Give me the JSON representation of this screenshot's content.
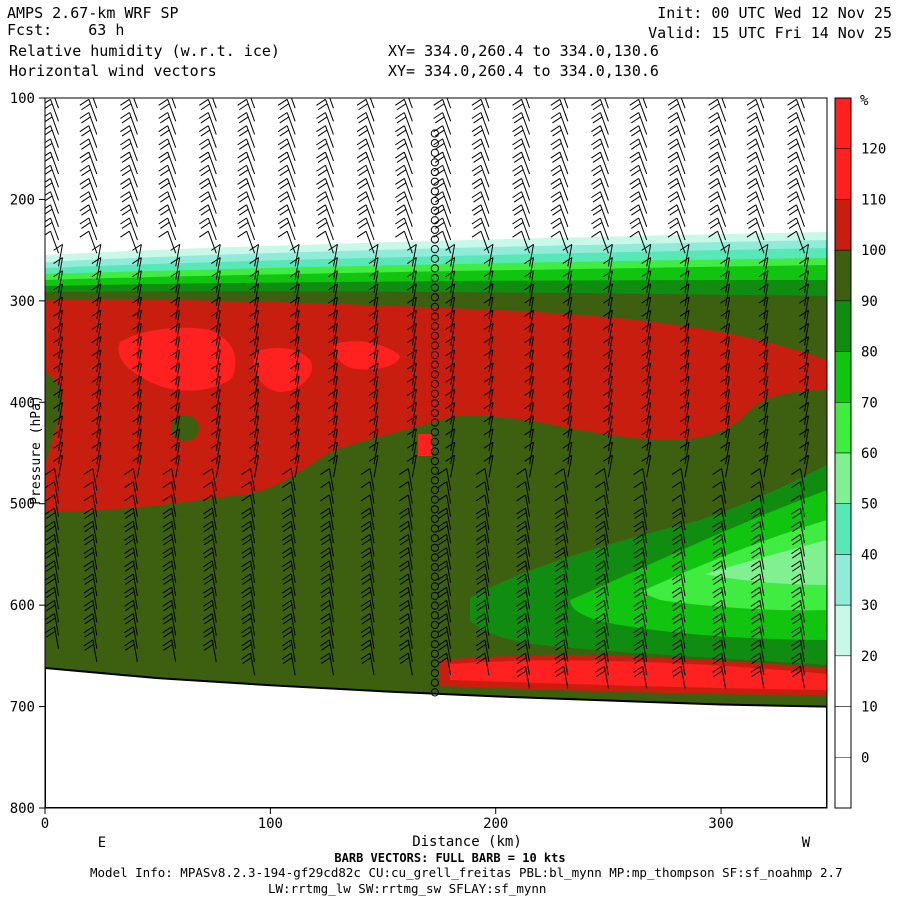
{
  "header": {
    "model": "AMPS 2.67-km WRF SP",
    "fcst_label": "Fcst:",
    "fcst_value": "63 h",
    "field1": "Relative humidity (w.r.t. ice)",
    "field2": "Horizontal wind vectors",
    "xy1": "XY= 334.0,260.4 to 334.0,130.6",
    "xy2": "XY= 334.0,260.4 to 334.0,130.6",
    "init": "Init: 00 UTC Wed 12 Nov 25",
    "valid": "Valid: 15 UTC Fri 14 Nov 25"
  },
  "footer": {
    "barb_note": "BARB VECTORS:  FULL BARB = 10 kts",
    "model_info": "Model Info: MPASv8.2.3-194-gf29cd82c CU:cu_grell_freitas PBL:bl_mynn MP:mp_thompson SF:sf_noahmp 2.7",
    "model_info2": "LW:rrtmg_lw SW:rrtmg_sw SFLAY:sf_mynn"
  },
  "chart_data": {
    "type": "heatmap",
    "xlabel": "Distance (km)",
    "ylabel": "Pressure (hPa)",
    "xlim": [
      0,
      347
    ],
    "ylim": [
      800,
      100
    ],
    "x_ticks": [
      "0",
      "100",
      "200",
      "300"
    ],
    "y_ticks": [
      "100",
      "200",
      "300",
      "400",
      "500",
      "600",
      "700",
      "800"
    ],
    "left_end_label": "E",
    "right_end_label": "W",
    "colorbar": {
      "unit": "%",
      "levels": [
        "0",
        "10",
        "20",
        "30",
        "40",
        "50",
        "60",
        "70",
        "80",
        "90",
        "100",
        "110",
        "120"
      ],
      "colors": [
        "#ffffff",
        "#ffffff",
        "#ffffff",
        "#c8f8e8",
        "#90ecd8",
        "#58e8b8",
        "#80f090",
        "#40ec40",
        "#10c410",
        "#108c10",
        "#3c6010",
        "#c81e10",
        "#ff2020"
      ]
    },
    "terrain_pressure": [
      [
        0,
        662
      ],
      [
        50,
        672
      ],
      [
        100,
        679
      ],
      [
        150,
        685
      ],
      [
        200,
        690
      ],
      [
        250,
        694
      ],
      [
        300,
        698
      ],
      [
        347,
        700
      ]
    ],
    "cirrus_base_pressure": [
      [
        0,
        262
      ],
      [
        100,
        252
      ],
      [
        200,
        248
      ],
      [
        300,
        246
      ],
      [
        347,
        240
      ]
    ],
    "cloud_core_region": "red (110-120%) layer from about 290 to 460 hPa",
    "dry_wedge_region": "moist-to-dry green gradient in lower right, 480-650 hPa",
    "barbs": {
      "columns_x": [
        6,
        23,
        41,
        58,
        76,
        93,
        111,
        128,
        146,
        163,
        180,
        197,
        215,
        232,
        250,
        267,
        284,
        302,
        319,
        337
      ],
      "calm_column_x": 173
    }
  }
}
